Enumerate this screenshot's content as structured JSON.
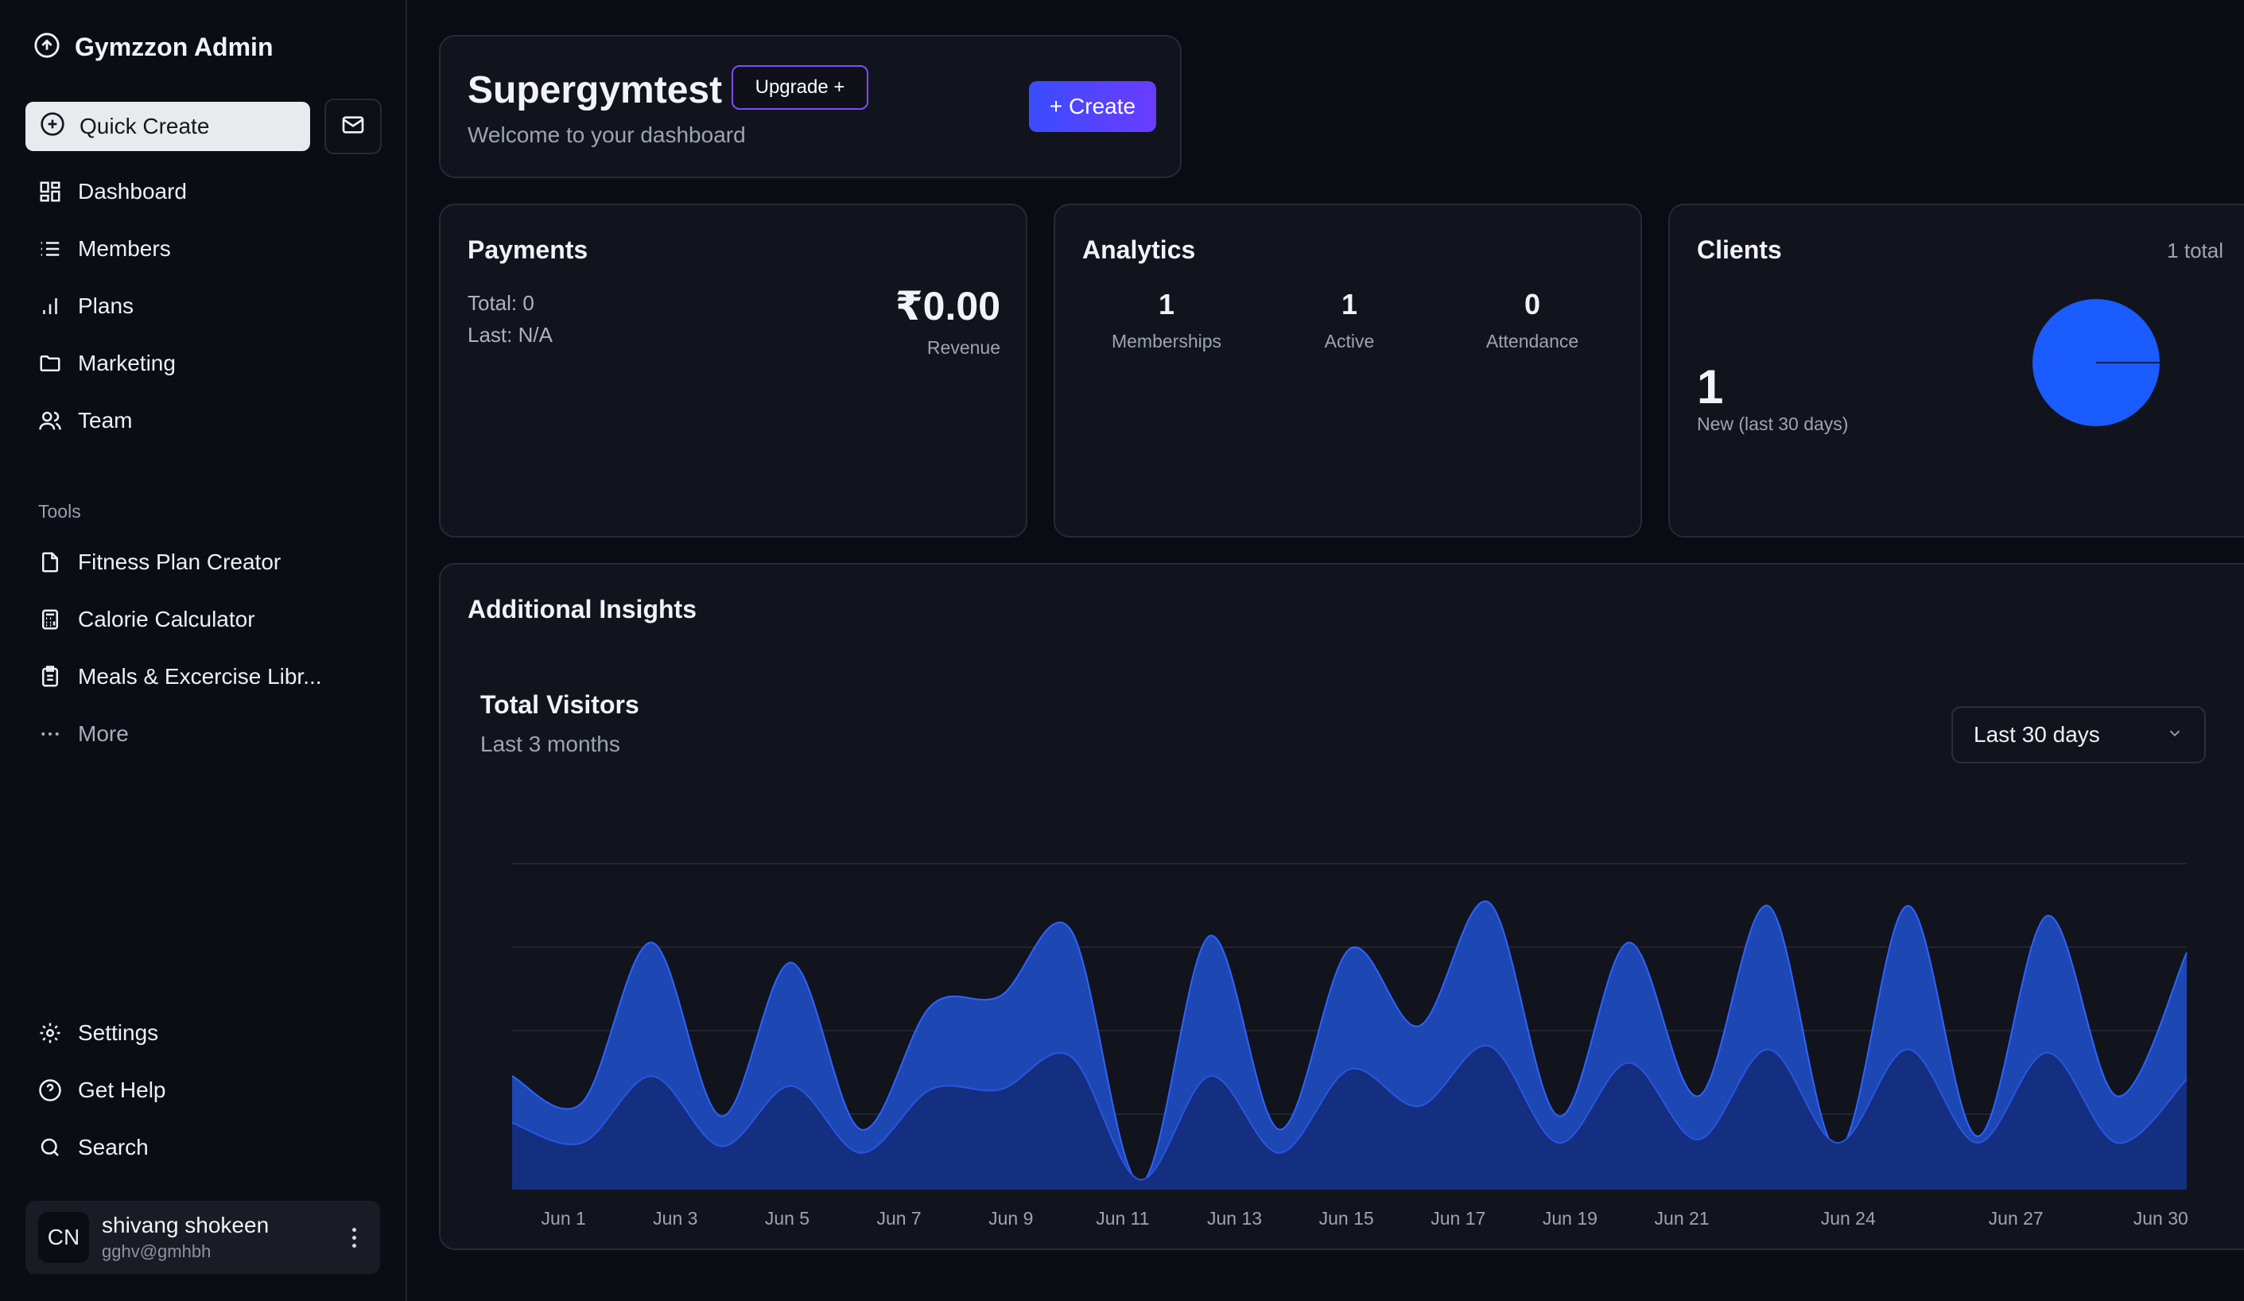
{
  "sidebar": {
    "brand": "Gymzzon Admin",
    "quick_create": "Quick Create",
    "nav": [
      "Dashboard",
      "Members",
      "Plans",
      "Marketing",
      "Team"
    ],
    "tools_label": "Tools",
    "tools": [
      "Fitness Plan Creator",
      "Calorie Calculator",
      "Meals & Excercise Libr...",
      "More"
    ],
    "bottom": [
      "Settings",
      "Get Help",
      "Search"
    ],
    "user": {
      "initials": "CN",
      "name": "shivang shokeen",
      "email": "gghv@gmhbh"
    }
  },
  "hero": {
    "title": "Supergymtest",
    "upgrade": "Upgrade +",
    "subtitle": "Welcome to your dashboard",
    "create": "+ Create"
  },
  "payments": {
    "title": "Payments",
    "total": "Total: 0",
    "last": "Last: N/A",
    "amount": "₹0.00",
    "amount_label": "Revenue"
  },
  "analytics": {
    "title": "Analytics",
    "stats": [
      {
        "value": "1",
        "label": "Memberships"
      },
      {
        "value": "1",
        "label": "Active"
      },
      {
        "value": "0",
        "label": "Attendance"
      }
    ]
  },
  "clients": {
    "title": "Clients",
    "total": "1 total",
    "new_count": "1",
    "new_label": "New (last 30 days)",
    "pie_color": "#1a5cff"
  },
  "insights": {
    "title": "Additional Insights",
    "chart_title": "Total Visitors",
    "chart_subtitle": "Last 3 months",
    "range": "Last 30 days"
  },
  "chart_data": {
    "type": "area",
    "x_ticks": [
      "Jun 1",
      "Jun 3",
      "Jun 5",
      "Jun 7",
      "Jun 9",
      "Jun 11",
      "Jun 13",
      "Jun 15",
      "Jun 17",
      "Jun 19",
      "Jun 21",
      "Jun 24",
      "Jun 27",
      "Jun 30"
    ],
    "grid": true,
    "series": [
      {
        "color": "#1d47b3",
        "values": [
          0.34,
          0.26,
          0.74,
          0.22,
          0.68,
          0.18,
          0.55,
          0.58,
          0.78,
          0.02,
          0.76,
          0.18,
          0.72,
          0.49,
          0.86,
          0.22,
          0.74,
          0.28,
          0.85,
          0.12,
          0.85,
          0.16,
          0.82,
          0.28,
          0.71
        ]
      },
      {
        "color": "#142e80",
        "values": [
          0.2,
          0.14,
          0.34,
          0.13,
          0.31,
          0.11,
          0.3,
          0.3,
          0.4,
          0.03,
          0.34,
          0.11,
          0.36,
          0.25,
          0.43,
          0.14,
          0.38,
          0.15,
          0.42,
          0.14,
          0.42,
          0.14,
          0.41,
          0.14,
          0.33
        ]
      }
    ]
  },
  "colors": {
    "accent": "#3a4cff",
    "brand_purple": "#7c4dff"
  }
}
